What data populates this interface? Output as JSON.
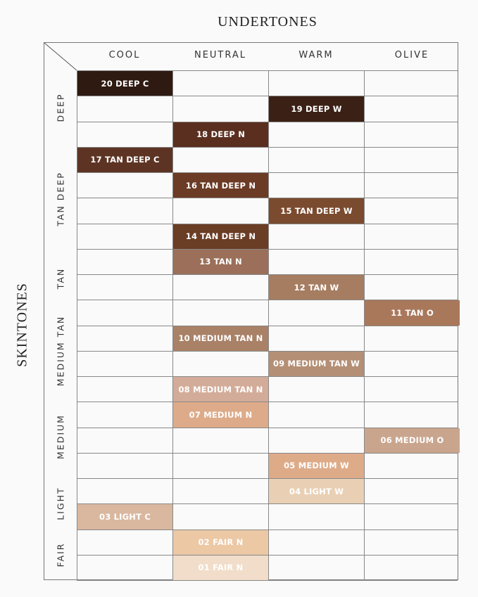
{
  "header": {
    "title": "UNDERTONES",
    "side_title": "SKINTONES"
  },
  "undertones": [
    "COOL",
    "NEUTRAL",
    "WARM",
    "OLIVE"
  ],
  "skintones": [
    "DEEP",
    "TAN DEEP",
    "TAN",
    "MEDIUM TAN",
    "MEDIUM",
    "LIGHT",
    "FAIR"
  ],
  "shades": [
    {
      "label": "20 DEEP C",
      "undertone": "COOL",
      "color": "#2f1a11"
    },
    {
      "label": "19 DEEP W",
      "undertone": "WARM",
      "color": "#3b2115"
    },
    {
      "label": "18 DEEP N",
      "undertone": "NEUTRAL",
      "color": "#5a2f1f"
    },
    {
      "label": "17 TAN DEEP C",
      "undertone": "COOL",
      "color": "#5d3424"
    },
    {
      "label": "16 TAN DEEP N",
      "undertone": "NEUTRAL",
      "color": "#6b3b26"
    },
    {
      "label": "15 TAN DEEP W",
      "undertone": "WARM",
      "color": "#7b4b2f"
    },
    {
      "label": "14 TAN DEEP N",
      "undertone": "NEUTRAL",
      "color": "#6a3d25"
    },
    {
      "label": "13 TAN N",
      "undertone": "NEUTRAL",
      "color": "#9b6f59"
    },
    {
      "label": "12 TAN W",
      "undertone": "WARM",
      "color": "#a67d61"
    },
    {
      "label": "11 TAN O",
      "undertone": "OLIVE",
      "color": "#a9785b"
    },
    {
      "label": "10 MEDIUM TAN N",
      "undertone": "NEUTRAL",
      "color": "#a98167"
    },
    {
      "label": "09 MEDIUM TAN W",
      "undertone": "WARM",
      "color": "#b48f75"
    },
    {
      "label": "08 MEDIUM TAN N",
      "undertone": "NEUTRAL",
      "color": "#d3ac99"
    },
    {
      "label": "07 MEDIUM N",
      "undertone": "NEUTRAL",
      "color": "#ddab89"
    },
    {
      "label": "06 MEDIUM O",
      "undertone": "OLIVE",
      "color": "#caa58d"
    },
    {
      "label": "05 MEDIUM W",
      "undertone": "WARM",
      "color": "#deab89"
    },
    {
      "label": "04 LIGHT W",
      "undertone": "WARM",
      "color": "#e9d0b5"
    },
    {
      "label": "03 LIGHT C",
      "undertone": "COOL",
      "color": "#d9b89f"
    },
    {
      "label": "02 FAIR N",
      "undertone": "NEUTRAL",
      "color": "#ecc8a5"
    },
    {
      "label": "01 FAIR N",
      "undertone": "NEUTRAL",
      "color": "#f1ddc9"
    }
  ]
}
